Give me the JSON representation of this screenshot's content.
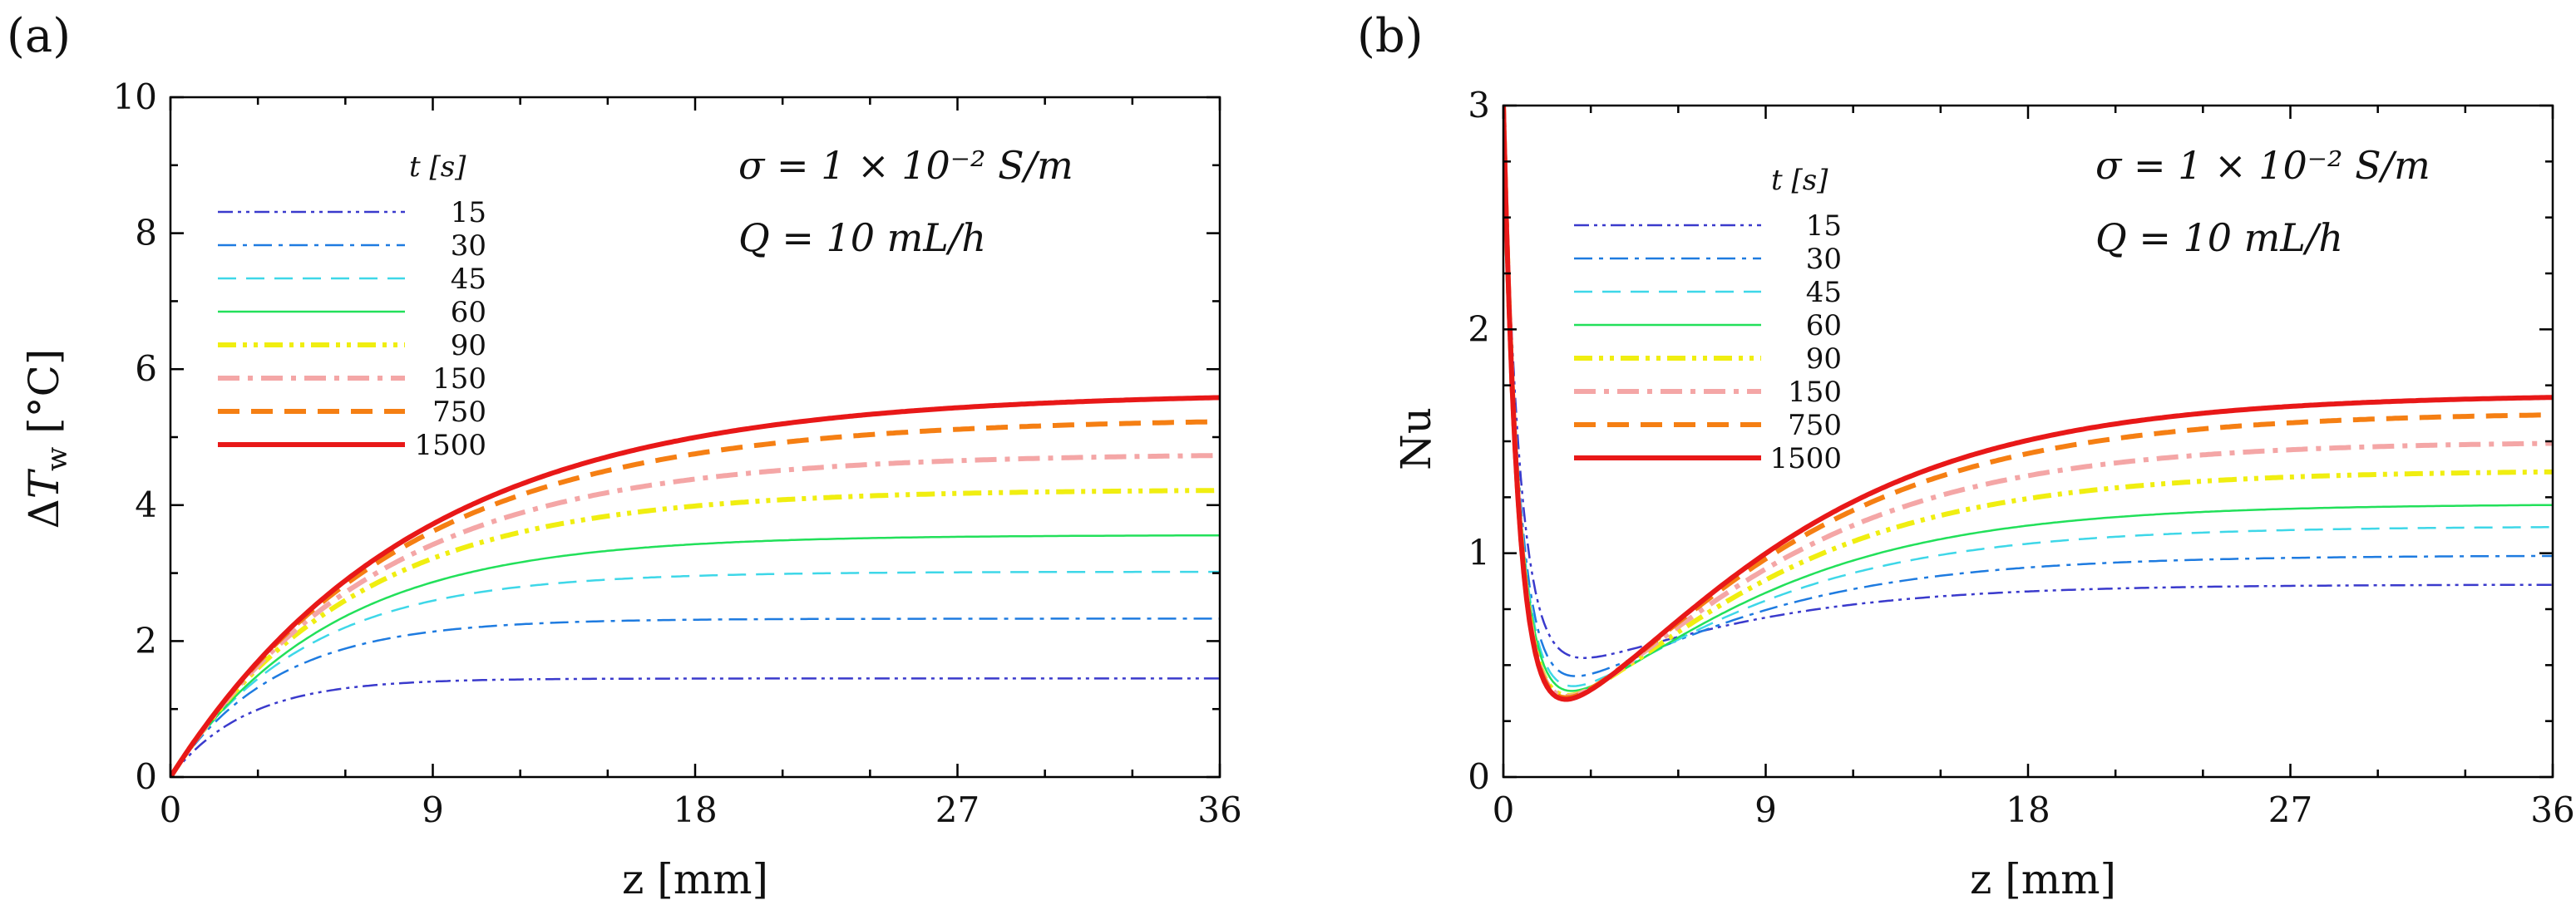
{
  "chart_data": [
    {
      "type": "line",
      "panel_label": "(a)",
      "xlabel": "z [mm]",
      "ylabel": "ΔT_w [°C]",
      "ylabel_parts": {
        "delta": "Δ",
        "var": "T",
        "sub": "w",
        "unit": " [°C]"
      },
      "xlim": [
        0,
        36
      ],
      "ylim": [
        0,
        10
      ],
      "xticks": [
        0,
        9,
        18,
        27,
        36
      ],
      "yticks": [
        0,
        2,
        4,
        6,
        8,
        10
      ],
      "grid": false,
      "legend_position": "top-left",
      "legend_title": "t [s]",
      "annotations": [
        "σ = 1 × 10⁻² S/m",
        "Q = 10 mL/h"
      ],
      "series": [
        {
          "name": "15",
          "color": "#3a3acc",
          "dash": "18,6,4,6,4,6",
          "width": 2.5,
          "ss": 1.45,
          "zc": 2.6
        },
        {
          "name": "30",
          "color": "#1e7be0",
          "dash": "22,8,5,8",
          "width": 2.5,
          "ss": 2.33,
          "zc": 3.6
        },
        {
          "name": "45",
          "color": "#3ed7e8",
          "dash": "22,12",
          "width": 2.5,
          "ss": 3.02,
          "zc": 4.6
        },
        {
          "name": "60",
          "color": "#22e05a",
          "dash": "none",
          "width": 2.5,
          "ss": 3.56,
          "zc": 5.5
        },
        {
          "name": "90",
          "color": "#f0ee10",
          "dash": "22,8,5,8,5,8",
          "width": 6,
          "ss": 4.23,
          "zc": 6.3
        },
        {
          "name": "150",
          "color": "#f4a6a6",
          "dash": "26,10,6,10",
          "width": 6,
          "ss": 4.76,
          "zc": 7.1
        },
        {
          "name": "750",
          "color": "#f57f13",
          "dash": "26,14",
          "width": 6,
          "ss": 5.28,
          "zc": 7.8
        },
        {
          "name": "1500",
          "color": "#e81818",
          "dash": "none",
          "width": 6,
          "ss": 5.66,
          "zc": 8.4
        }
      ]
    },
    {
      "type": "line",
      "panel_label": "(b)",
      "xlabel": "z [mm]",
      "ylabel": "Nu",
      "xlim": [
        0,
        36
      ],
      "ylim": [
        0,
        3
      ],
      "xticks": [
        0,
        9,
        18,
        27,
        36
      ],
      "yticks": [
        0,
        1,
        2,
        3
      ],
      "grid": false,
      "legend_position": "top-left",
      "legend_title": "t [s]",
      "annotations": [
        "σ = 1 × 10⁻² S/m",
        "Q = 10 mL/h"
      ],
      "series": [
        {
          "name": "15",
          "color": "#3a3acc",
          "dash": "18,6,4,6,4,6",
          "width": 2.5,
          "ss": 0.86,
          "zmin": 1.8,
          "vmin": 0.46
        },
        {
          "name": "30",
          "color": "#1e7be0",
          "dash": "22,8,5,8",
          "width": 2.5,
          "ss": 0.99,
          "zmin": 1.7,
          "vmin": 0.36
        },
        {
          "name": "45",
          "color": "#3ed7e8",
          "dash": "22,12",
          "width": 2.5,
          "ss": 1.12,
          "zmin": 1.7,
          "vmin": 0.3
        },
        {
          "name": "60",
          "color": "#22e05a",
          "dash": "none",
          "width": 2.5,
          "ss": 1.22,
          "zmin": 1.7,
          "vmin": 0.27
        },
        {
          "name": "90",
          "color": "#f0ee10",
          "dash": "22,8,5,8,5,8",
          "width": 6,
          "ss": 1.37,
          "zmin": 1.6,
          "vmin": 0.25
        },
        {
          "name": "150",
          "color": "#f4a6a6",
          "dash": "26,10,6,10",
          "width": 6,
          "ss": 1.5,
          "zmin": 1.6,
          "vmin": 0.24
        },
        {
          "name": "750",
          "color": "#f57f13",
          "dash": "26,14",
          "width": 6,
          "ss": 1.63,
          "zmin": 1.6,
          "vmin": 0.23
        },
        {
          "name": "1500",
          "color": "#e81818",
          "dash": "none",
          "width": 6,
          "ss": 1.71,
          "zmin": 1.6,
          "vmin": 0.22
        }
      ]
    }
  ]
}
